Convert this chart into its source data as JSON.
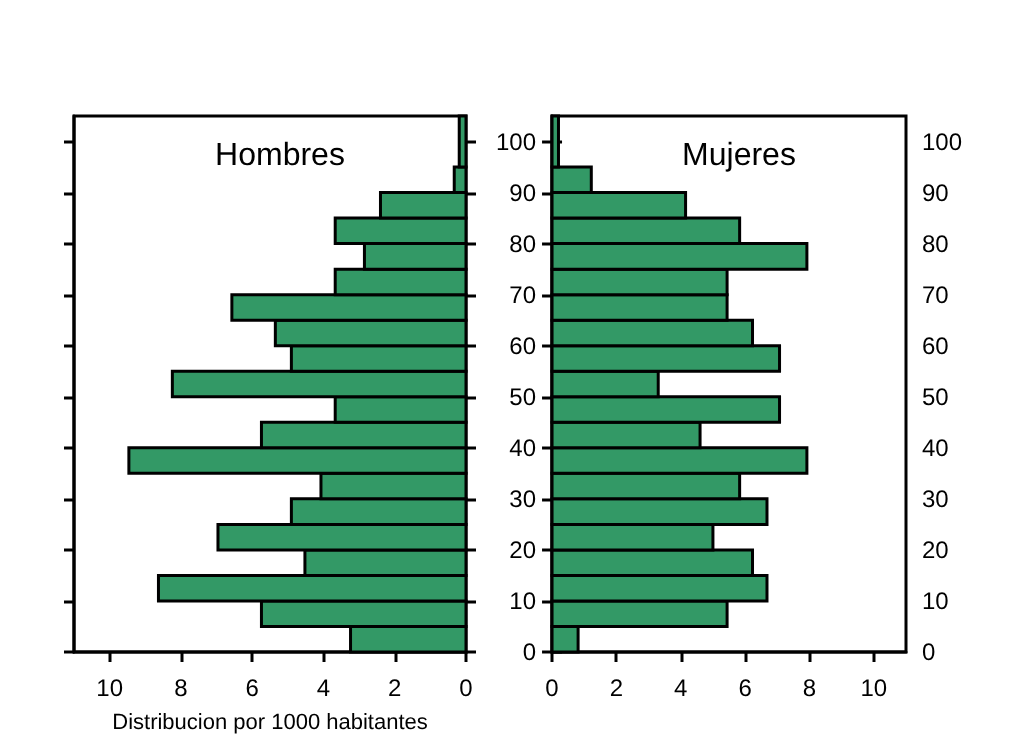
{
  "chart_data": [
    {
      "type": "histogram",
      "orientation": "horizontal",
      "title": "Hombres",
      "xlabel": "Distribucion por 1000 habitantes",
      "color": "#339966",
      "bins": [
        0,
        5,
        10,
        15,
        20,
        25,
        30,
        35,
        40,
        45,
        50,
        55,
        60,
        65,
        70,
        75,
        80,
        85,
        90,
        95,
        105
      ],
      "values": [
        3.24,
        5.74,
        8.63,
        4.52,
        6.96,
        4.9,
        4.07,
        9.46,
        5.74,
        3.67,
        8.24,
        4.9,
        5.35,
        6.57,
        3.67,
        2.85,
        3.67,
        2.4,
        0.33,
        0.19
      ],
      "xlim": [
        11,
        0
      ],
      "xticks": [
        10,
        8,
        6,
        4,
        2,
        0
      ],
      "ylim": [
        0,
        105
      ],
      "yticks": [
        0,
        10,
        20,
        30,
        40,
        50,
        60,
        70,
        80,
        90,
        100
      ],
      "tick_labels": "x",
      "grid": false
    },
    {
      "type": "histogram",
      "orientation": "horizontal",
      "title": "Mujeres",
      "color": "#339966",
      "bins": [
        0,
        5,
        10,
        15,
        20,
        25,
        30,
        35,
        40,
        45,
        50,
        55,
        60,
        65,
        70,
        75,
        80,
        85,
        90,
        95,
        105
      ],
      "values": [
        0.81,
        5.44,
        6.68,
        6.23,
        5.0,
        6.68,
        5.83,
        7.92,
        4.6,
        7.07,
        3.3,
        7.07,
        6.23,
        5.44,
        5.44,
        7.92,
        5.83,
        4.15,
        1.22,
        0.2
      ],
      "xlim": [
        0,
        11
      ],
      "xticks": [
        0,
        2,
        4,
        6,
        8,
        10
      ],
      "ylim": [
        0,
        105
      ],
      "yticks": [
        0,
        10,
        20,
        30,
        40,
        50,
        60,
        70,
        80,
        90,
        100
      ],
      "y2lim": [
        0,
        105
      ],
      "y2ticks": [
        0,
        10,
        20,
        30,
        40,
        50,
        60,
        70,
        80,
        90,
        100
      ],
      "grid": false
    }
  ]
}
